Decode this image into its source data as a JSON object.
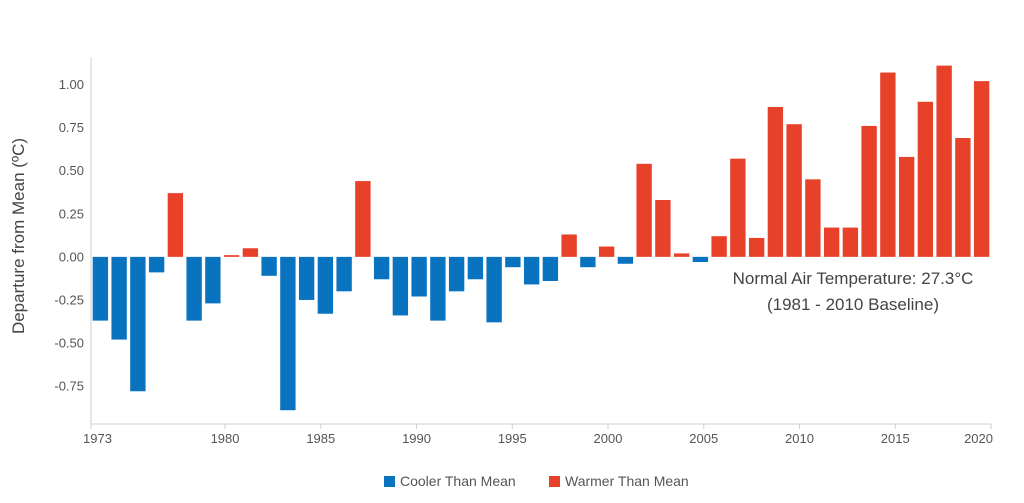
{
  "chart_data": {
    "type": "bar",
    "title": "",
    "xlabel": "",
    "ylabel": "Departure from Mean (ºC)",
    "ylim": [
      -0.97,
      1.16
    ],
    "xlim": [
      1973,
      2020
    ],
    "y_ticks": [
      "-0.75",
      "-0.50",
      "-0.25",
      "0.00",
      "0.25",
      "0.50",
      "0.75",
      "1.00"
    ],
    "y_tick_values": [
      -0.75,
      -0.5,
      -0.25,
      0.0,
      0.25,
      0.5,
      0.75,
      1.0
    ],
    "x_ticks": [
      "1973",
      "1980",
      "1985",
      "1990",
      "1995",
      "2000",
      "2005",
      "2010",
      "2015",
      "2020"
    ],
    "x_tick_values": [
      1973,
      1980,
      1985,
      1990,
      1995,
      2000,
      2005,
      2010,
      2015,
      2020
    ],
    "grid": false,
    "legend_position": "bottom-center",
    "series": [
      {
        "name": "Cooler Than Mean",
        "color": "#0a73bf"
      },
      {
        "name": "Warmer Than Mean",
        "color": "#e8412a"
      }
    ],
    "years": [
      1973,
      1974,
      1975,
      1976,
      1977,
      1978,
      1979,
      1980,
      1981,
      1982,
      1983,
      1984,
      1985,
      1986,
      1987,
      1988,
      1989,
      1990,
      1991,
      1992,
      1993,
      1994,
      1995,
      1996,
      1997,
      1998,
      1999,
      2000,
      2001,
      2002,
      2003,
      2004,
      2005,
      2006,
      2007,
      2008,
      2009,
      2010,
      2011,
      2012,
      2013,
      2014,
      2015,
      2016,
      2017,
      2018,
      2019,
      2020
    ],
    "values": [
      -0.37,
      -0.48,
      -0.78,
      -0.09,
      0.37,
      -0.37,
      -0.27,
      0.01,
      0.05,
      -0.11,
      -0.89,
      -0.25,
      -0.33,
      -0.2,
      0.44,
      -0.13,
      -0.34,
      -0.23,
      -0.37,
      -0.2,
      -0.13,
      -0.38,
      -0.06,
      -0.16,
      -0.14,
      0.13,
      -0.06,
      0.06,
      -0.04,
      0.54,
      0.33,
      0.02,
      -0.03,
      0.12,
      0.57,
      0.11,
      0.87,
      0.77,
      0.45,
      0.17,
      0.17,
      0.76,
      1.07,
      0.58,
      0.9,
      1.11,
      0.69,
      1.02
    ],
    "annotations": [
      "Normal Air Temperature: 27.3°C",
      "(1981 - 2010 Baseline)"
    ]
  }
}
